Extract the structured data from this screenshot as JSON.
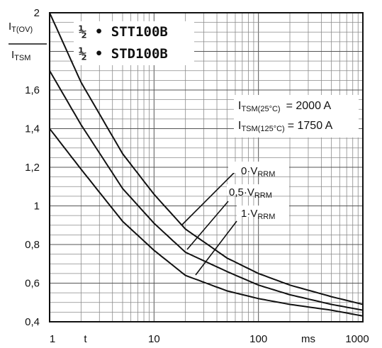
{
  "chart_data": {
    "type": "line",
    "x_scale": "log",
    "y_scale": "linear",
    "xlim": [
      1,
      1000
    ],
    "ylim": [
      0.4,
      2.0
    ],
    "grid": true,
    "ylabel_parts": {
      "top_main": "I",
      "top_sub": "T(OV)",
      "bottom_main": "I",
      "bottom_sub": "TSM"
    },
    "title_lines": [
      "½ • STT100B",
      "½ • STD100B"
    ],
    "x_ticks": [
      {
        "value": 1,
        "label": "1"
      },
      {
        "value": 2.2,
        "label": "t"
      },
      {
        "value": 10,
        "label": "10"
      },
      {
        "value": 100,
        "label": "100"
      },
      {
        "value": 300,
        "label": "ms"
      },
      {
        "value": 1000,
        "label": "1000"
      }
    ],
    "y_ticks": [
      {
        "value": 0.4,
        "label": "0,4"
      },
      {
        "value": 0.6,
        "label": "0,6"
      },
      {
        "value": 0.8,
        "label": "0,8"
      },
      {
        "value": 1.0,
        "label": "1"
      },
      {
        "value": 1.2,
        "label": "1,2"
      },
      {
        "value": 1.4,
        "label": "1,4"
      },
      {
        "value": 1.6,
        "label": "1,6"
      },
      {
        "value": 2.0,
        "label": "2"
      }
    ],
    "itsm_annotations": [
      {
        "main": "I",
        "sub": "TSM(25°C)",
        "value": "= 2000 A"
      },
      {
        "main": "I",
        "sub": "TSM(125°C)",
        "value": "= 1750 A"
      }
    ],
    "series": [
      {
        "label_main": "0·V",
        "label_sub": "RRM",
        "x": [
          1,
          2,
          5,
          10,
          20,
          50,
          100,
          200,
          500,
          1000
        ],
        "y": [
          2.0,
          1.64,
          1.27,
          1.06,
          0.88,
          0.73,
          0.65,
          0.59,
          0.53,
          0.49
        ]
      },
      {
        "label_main": "0,5·V",
        "label_sub": "RRM",
        "x": [
          1,
          2,
          5,
          10,
          20,
          50,
          100,
          200,
          500,
          1000
        ],
        "y": [
          1.7,
          1.42,
          1.09,
          0.91,
          0.76,
          0.66,
          0.59,
          0.54,
          0.49,
          0.46
        ]
      },
      {
        "label_main": "1·V",
        "label_sub": "RRM",
        "x": [
          1,
          2,
          5,
          10,
          20,
          50,
          100,
          200,
          500,
          1000
        ],
        "y": [
          1.4,
          1.19,
          0.92,
          0.77,
          0.64,
          0.56,
          0.52,
          0.49,
          0.46,
          0.43
        ]
      }
    ]
  }
}
